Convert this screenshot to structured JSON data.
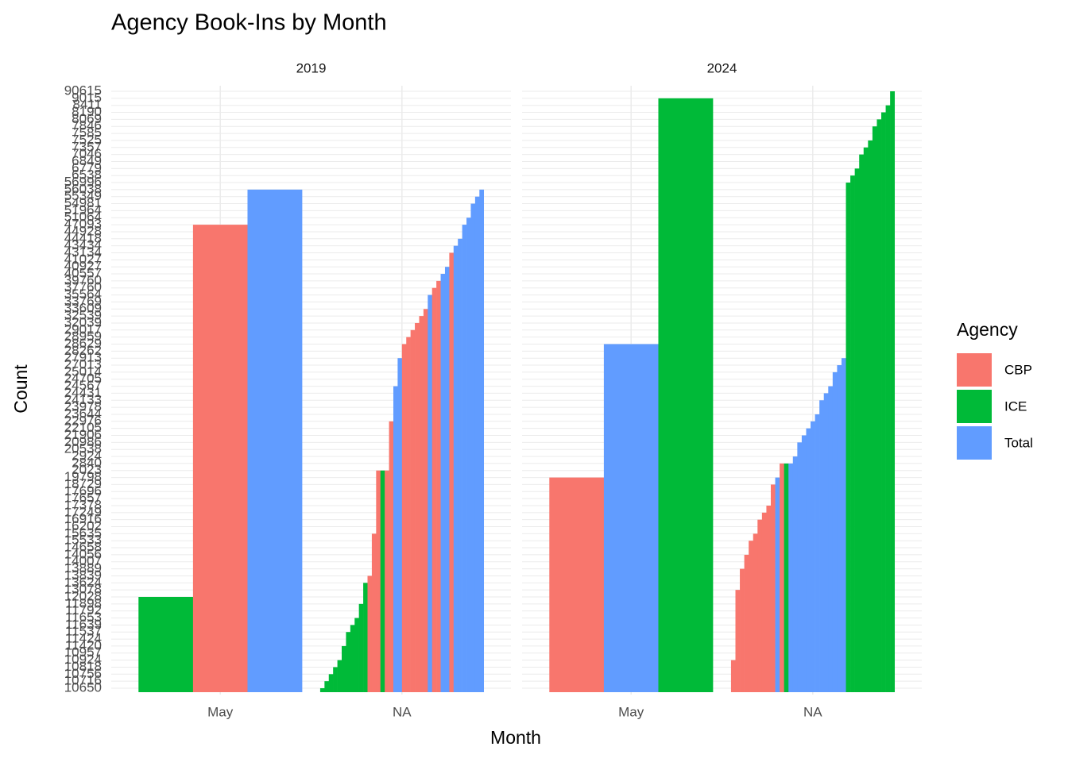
{
  "chart_data": {
    "type": "bar",
    "title": "Agency Book-Ins by Month",
    "x_label": "Month",
    "y_label": "Count",
    "ylevels": [
      "10650",
      "10716",
      "10756",
      "10818",
      "10924",
      "10957",
      "11420",
      "11424",
      "11537",
      "11639",
      "11653",
      "11792",
      "11898",
      "12028",
      "13078",
      "13624",
      "13839",
      "13889",
      "14007",
      "14056",
      "14658",
      "15533",
      "15635",
      "16202",
      "16916",
      "17249",
      "17378",
      "17657",
      "17696",
      "18729",
      "19798",
      "2023",
      "2840",
      "2924",
      "20538",
      "20986",
      "21906",
      "22105",
      "22976",
      "23644",
      "23978",
      "24133",
      "24431",
      "24567",
      "24705",
      "25014",
      "27013",
      "27913",
      "28262",
      "28629",
      "28959",
      "29017",
      "32039",
      "32539",
      "33609",
      "33769",
      "35564",
      "37760",
      "39760",
      "40557",
      "40927",
      "41027",
      "43134",
      "43434",
      "44418",
      "44928",
      "47093",
      "51064",
      "51964",
      "54981",
      "55349",
      "56038",
      "56996",
      "6538",
      "6779",
      "6849",
      "7046",
      "7357",
      "7525",
      "7585",
      "7846",
      "8069",
      "8190",
      "8411",
      "9015",
      "90615"
    ],
    "legend": {
      "title": "Agency",
      "items": [
        {
          "name": "CBP",
          "color": "#F8766D"
        },
        {
          "name": "ICE",
          "color": "#00BA38"
        },
        {
          "name": "Total",
          "color": "#619CFF"
        }
      ]
    },
    "facets": [
      {
        "label": "2019",
        "groups": [
          {
            "category": "May",
            "agencies": [
              "ICE",
              "CBP",
              "Total"
            ],
            "values": [
              "12028",
              "47093",
              "56038"
            ]
          },
          {
            "category": "NA",
            "agencies": [
              "ICE",
              "ICE",
              "ICE",
              "ICE",
              "ICE",
              "ICE",
              "ICE",
              "ICE",
              "ICE",
              "ICE",
              "ICE",
              "CBP",
              "CBP",
              "CBP",
              "ICE",
              "CBP",
              "CBP",
              "Total",
              "Total",
              "CBP",
              "CBP",
              "CBP",
              "CBP",
              "CBP",
              "CBP",
              "Total",
              "CBP",
              "CBP",
              "Total",
              "Total",
              "CBP",
              "Total",
              "Total",
              "Total",
              "Total",
              "Total",
              "Total",
              "Total"
            ],
            "values": [
              "10650",
              "10716",
              "10756",
              "10818",
              "10924",
              "11420",
              "11537",
              "11639",
              "11653",
              "11898",
              "13624",
              "13839",
              "15635",
              "2023",
              "2023",
              "2023",
              "22976",
              "24567",
              "27913",
              "28629",
              "28959",
              "29017",
              "32039",
              "32539",
              "33609",
              "35564",
              "37760",
              "39760",
              "40557",
              "40927",
              "43134",
              "43434",
              "44418",
              "47093",
              "51064",
              "54981",
              "55349",
              "56038"
            ]
          }
        ]
      },
      {
        "label": "2024",
        "groups": [
          {
            "category": "May",
            "agencies": [
              "CBP",
              "Total",
              "ICE"
            ],
            "values": [
              "19798",
              "28629",
              "9015"
            ]
          },
          {
            "category": "NA",
            "agencies": [
              "CBP",
              "CBP",
              "CBP",
              "CBP",
              "CBP",
              "CBP",
              "CBP",
              "CBP",
              "CBP",
              "CBP",
              "Total",
              "CBP",
              "ICE",
              "Total",
              "Total",
              "Total",
              "Total",
              "Total",
              "Total",
              "Total",
              "Total",
              "Total",
              "Total",
              "Total",
              "Total",
              "Total",
              "ICE",
              "ICE",
              "ICE",
              "ICE",
              "ICE",
              "ICE",
              "ICE",
              "ICE",
              "ICE",
              "ICE",
              "ICE"
            ],
            "values": [
              "10924",
              "13078",
              "13889",
              "14056",
              "15533",
              "15635",
              "16916",
              "17249",
              "17378",
              "18729",
              "19798",
              "2840",
              "2840",
              "2840",
              "2924",
              "20986",
              "21906",
              "22105",
              "22976",
              "23644",
              "24133",
              "24431",
              "24567",
              "25014",
              "27013",
              "27913",
              "56996",
              "6538",
              "6779",
              "7046",
              "7357",
              "7525",
              "7846",
              "8069",
              "8190",
              "8411",
              "90615"
            ]
          }
        ]
      }
    ]
  }
}
